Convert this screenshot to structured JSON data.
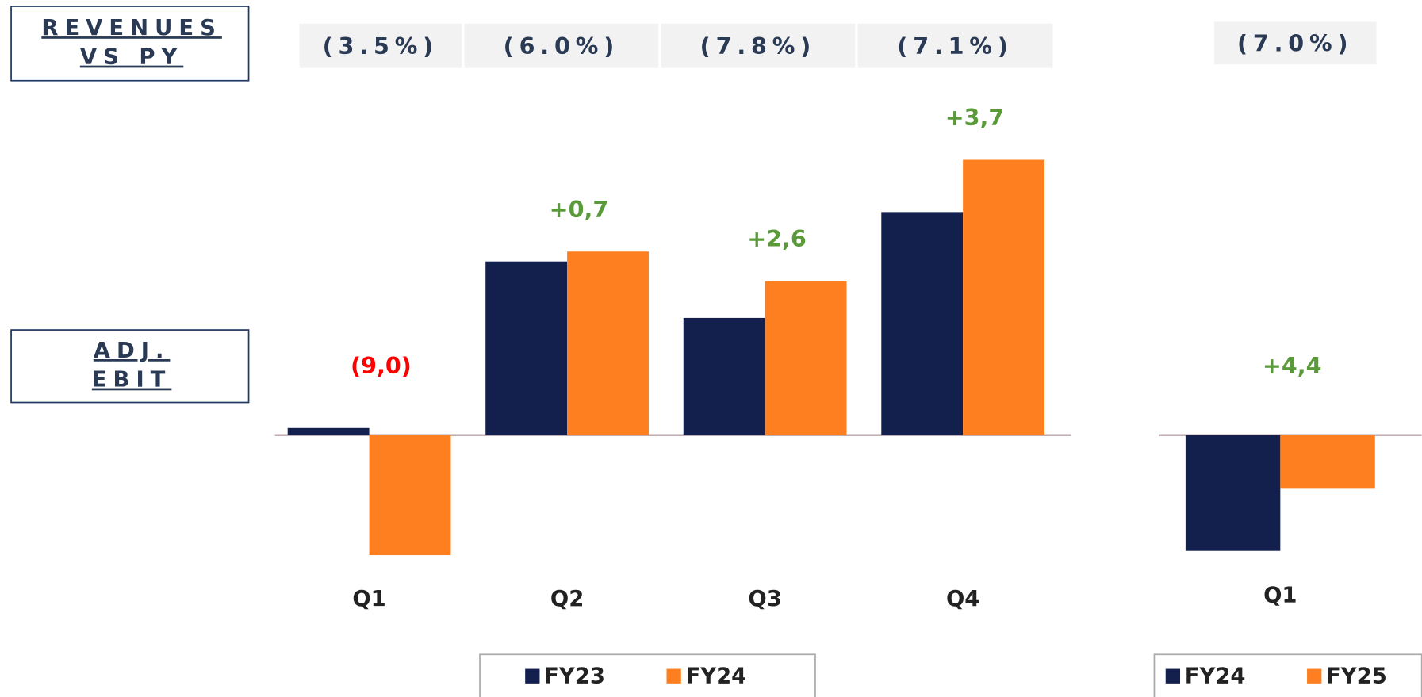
{
  "row_labels": {
    "revenues": [
      "REVENUES",
      "VS PY"
    ],
    "ebit": [
      "ADJ.",
      "EBIT"
    ]
  },
  "chart_data": [
    {
      "type": "bar",
      "categories": [
        "Q1",
        "Q2",
        "Q3",
        "Q4"
      ],
      "series": [
        {
          "name": "FY23",
          "color": "#13204d",
          "values": [
            0.5,
            12.3,
            8.3,
            15.8
          ]
        },
        {
          "name": "FY24",
          "color": "#fd7f20",
          "values": [
            -8.5,
            13.0,
            10.9,
            19.5
          ]
        }
      ],
      "deltas": {
        "values": [
          -9.0,
          0.7,
          2.6,
          3.7
        ],
        "value_labels": [
          "(9,0)",
          "+0,7",
          "+2,6",
          "+3,7"
        ]
      },
      "revenue_vs_py": {
        "values": [
          -3.5,
          -6.0,
          -7.8,
          -7.1
        ],
        "value_labels": [
          "(3.5%)",
          "(6.0%)",
          "(7.8%)",
          "(7.1%)"
        ]
      },
      "ylim": [
        -10,
        20
      ]
    },
    {
      "type": "bar",
      "categories": [
        "Q1"
      ],
      "series": [
        {
          "name": "FY24",
          "color": "#13204d",
          "values": [
            -8.2
          ]
        },
        {
          "name": "FY25",
          "color": "#fd7f20",
          "values": [
            -3.8
          ]
        }
      ],
      "deltas": {
        "values": [
          4.4
        ],
        "value_labels": [
          "+4,4"
        ]
      },
      "revenue_vs_py": {
        "values": [
          -7.0
        ],
        "value_labels": [
          "(7.0%)"
        ]
      },
      "ylim": [
        -10,
        20
      ]
    }
  ]
}
